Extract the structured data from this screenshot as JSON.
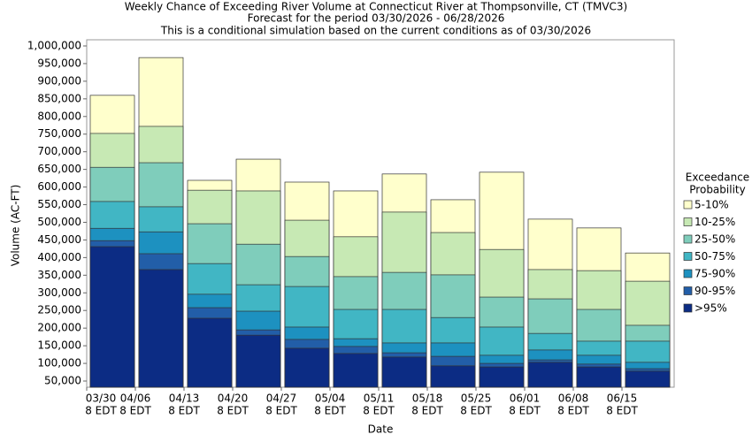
{
  "chart_data": {
    "type": "bar",
    "title": "Weekly Chance of Exceeding River Volume at Connecticut River at Thompsonville, CT (TMVC3)",
    "subtitle": [
      "Forecast for the period 03/30/2026 - 06/28/2026",
      "This is a conditional simulation based on the current conditions as of 03/30/2026"
    ],
    "x_label": "Date",
    "y_label": "Volume (AC-FT)",
    "categories": [
      "03/30",
      "04/06",
      "04/13",
      "04/20",
      "04/27",
      "05/04",
      "05/11",
      "05/18",
      "05/25",
      "06/01",
      "06/08",
      "06/15"
    ],
    "x_time_label": "8 EDT",
    "legend_title": [
      "Exceedance",
      "Probability"
    ],
    "legend_position": "right",
    "series": [
      {
        "name": "5-10%",
        "color": "#ffffcc",
        "values": [
          860000,
          967000,
          619000,
          679000,
          614000,
          589000,
          637000,
          564000,
          642000,
          509000,
          484000,
          413000
        ]
      },
      {
        "name": "10-25%",
        "color": "#c7e9b4",
        "values": [
          752000,
          772000,
          591000,
          589000,
          506000,
          459000,
          529000,
          471000,
          423000,
          366000,
          363000,
          333000
        ]
      },
      {
        "name": "25-50%",
        "color": "#7fcdbb",
        "values": [
          656000,
          669000,
          496000,
          438000,
          403000,
          346000,
          358000,
          351000,
          288000,
          283000,
          253000,
          208000
        ]
      },
      {
        "name": "50-75%",
        "color": "#41b6c4",
        "values": [
          559000,
          544000,
          383000,
          323000,
          318000,
          253000,
          253000,
          230000,
          203000,
          185000,
          163000,
          163000
        ]
      },
      {
        "name": "75-90%",
        "color": "#1d91c0",
        "values": [
          483000,
          473000,
          296000,
          248000,
          203000,
          170000,
          158000,
          158000,
          123000,
          138000,
          123000,
          103000
        ]
      },
      {
        "name": "90-95%",
        "color": "#225ea8",
        "values": [
          448000,
          411000,
          258000,
          195000,
          168000,
          148000,
          130000,
          120000,
          100000,
          110000,
          98000,
          85000
        ]
      },
      {
        "name": ">95%",
        "color": "#0c2c84",
        "values": [
          431000,
          366000,
          228000,
          180000,
          143000,
          128000,
          118000,
          93000,
          90000,
          103000,
          90000,
          78000
        ]
      }
    ],
    "ylim": [
      32500,
      1017500
    ],
    "yticks": [
      {
        "value": 50000,
        "label": "50,000"
      },
      {
        "value": 100000,
        "label": "100,000"
      },
      {
        "value": 150000,
        "label": "150,000"
      },
      {
        "value": 200000,
        "label": "200,000"
      },
      {
        "value": 250000,
        "label": "250,000"
      },
      {
        "value": 300000,
        "label": "300,000"
      },
      {
        "value": 350000,
        "label": "350,000"
      },
      {
        "value": 400000,
        "label": "400,000"
      },
      {
        "value": 450000,
        "label": "450,000"
      },
      {
        "value": 500000,
        "label": "500,000"
      },
      {
        "value": 550000,
        "label": "550,000"
      },
      {
        "value": 600000,
        "label": "600,000"
      },
      {
        "value": 650000,
        "label": "650,000"
      },
      {
        "value": 700000,
        "label": "700,000"
      },
      {
        "value": 750000,
        "label": "750,000"
      },
      {
        "value": 800000,
        "label": "800,000"
      },
      {
        "value": 850000,
        "label": "850,000"
      },
      {
        "value": 900000,
        "label": "900,000"
      },
      {
        "value": 950000,
        "label": "950,000"
      },
      {
        "value": 1000000,
        "label": "1,000,000"
      }
    ],
    "grid": false
  }
}
